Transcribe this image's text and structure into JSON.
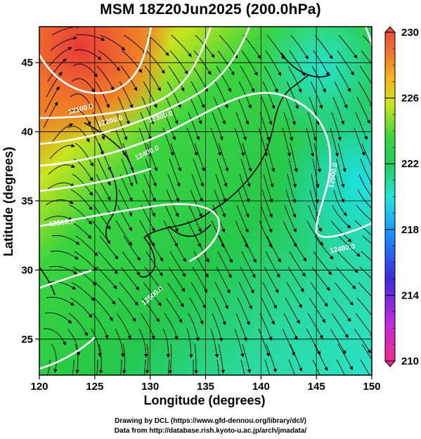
{
  "title": "MSM 18Z20Jun2025 (200.0hPa)",
  "xlabel": "Longitude (degrees)",
  "ylabel": "Latitude  (degrees)",
  "credits": {
    "line1": "Drawing by DCL (https://www.gfd-dennou.org/library/dcl/)",
    "line2": "Data from http://database.rish.kyoto-u.ac.jp/arch/jmadata/"
  },
  "map": {
    "lon_range": [
      120,
      150
    ],
    "lat_range": [
      22.4,
      47.6
    ],
    "x_ticks": [
      "120",
      "125",
      "130",
      "135",
      "140",
      "145",
      "150"
    ],
    "y_ticks": [
      "25",
      "30",
      "35",
      "40",
      "45"
    ],
    "grid": true
  },
  "colorbar": {
    "min": 210,
    "max": 230,
    "tick_labels": [
      "230",
      "226",
      "222",
      "218",
      "214",
      "210"
    ],
    "colors": [
      "#f02a8f",
      "#c02ae0",
      "#3a2ad8",
      "#1a8aff",
      "#22e6d8",
      "#1fcf5a",
      "#39d43e",
      "#c9e51e",
      "#f7b51b",
      "#f07a28",
      "#e84b3d"
    ]
  },
  "contours": [
    {
      "label": "12100.0"
    },
    {
      "label": "12200.0"
    },
    {
      "label": "12300.0"
    },
    {
      "label": "12400.0"
    },
    {
      "label": "12500.0"
    },
    {
      "label": "12500.0"
    },
    {
      "label": "12600.0"
    },
    {
      "label": "12400.0"
    }
  ]
}
